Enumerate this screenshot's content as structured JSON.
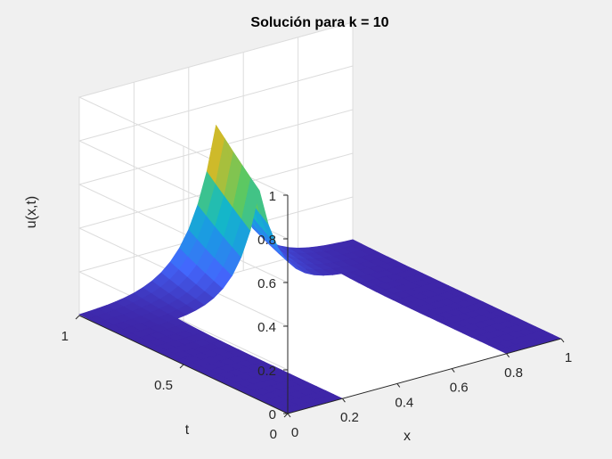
{
  "chart_data": {
    "type": "surface",
    "title": "Solución para k = 10",
    "xlabel": "x",
    "ylabel": "t",
    "zlabel": "u(x,t)",
    "xlim": [
      0,
      1
    ],
    "ylim": [
      0,
      1
    ],
    "zlim": [
      0,
      1
    ],
    "xticks": [
      "0",
      "0.2",
      "0.4",
      "0.6",
      "0.8",
      "1"
    ],
    "yticks": [
      "0",
      "0.5",
      "1"
    ],
    "zticks": [
      "0",
      "0.2",
      "0.4",
      "0.6",
      "0.8",
      "1"
    ],
    "grid": true,
    "colormap": "parula",
    "surface_peak": {
      "x": 0.5,
      "t": 1,
      "u": 0.7
    },
    "missing_region": {
      "x_from": 0.2,
      "x_to": 0.8,
      "t_from": 0,
      "t_to": 0.8
    },
    "colors": {
      "background": "#f0f0f0",
      "axes": "#ffffff",
      "grid": "#dcdcdc",
      "axis_line": "#262626"
    }
  }
}
